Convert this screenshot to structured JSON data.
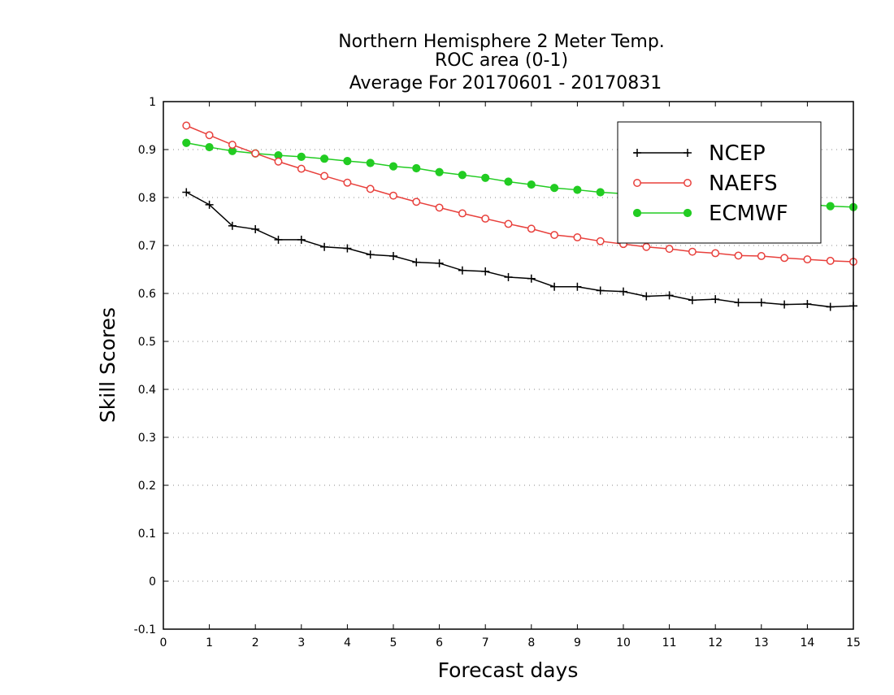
{
  "chart_data": {
    "type": "line",
    "title": [
      "Northern Hemisphere 2 Meter Temp.",
      "ROC area (0-1)",
      "Average For 20170601 - 20170831"
    ],
    "xlabel": "Forecast days",
    "ylabel": "Skill Scores",
    "xlim": [
      0,
      15
    ],
    "ylim": [
      -0.1,
      1
    ],
    "xticks": [
      "0",
      "1",
      "2",
      "3",
      "4",
      "5",
      "6",
      "7",
      "8",
      "9",
      "10",
      "11",
      "12",
      "13",
      "14",
      "15"
    ],
    "yticks": [
      "-0.1",
      "0",
      "0.1",
      "0.2",
      "0.3",
      "0.4",
      "0.5",
      "0.6",
      "0.7",
      "0.8",
      "0.9",
      "1"
    ],
    "grid": true,
    "legend_position": "top-right",
    "x": [
      0.5,
      1,
      1.5,
      2,
      2.5,
      3,
      3.5,
      4,
      4.5,
      5,
      5.5,
      6,
      6.5,
      7,
      7.5,
      8,
      8.5,
      9,
      9.5,
      10,
      10.5,
      11,
      11.5,
      12,
      12.5,
      13,
      13.5,
      14,
      14.5,
      15
    ],
    "series": [
      {
        "name": "NCEP",
        "color": "#000000",
        "marker": "plus",
        "values": [
          0.811,
          0.785,
          0.741,
          0.734,
          0.712,
          0.712,
          0.697,
          0.694,
          0.681,
          0.678,
          0.665,
          0.663,
          0.648,
          0.646,
          0.634,
          0.631,
          0.614,
          0.614,
          0.606,
          0.604,
          0.594,
          0.596,
          0.586,
          0.588,
          0.581,
          0.581,
          0.577,
          0.578,
          0.572,
          0.574
        ]
      },
      {
        "name": "NAEFS",
        "color": "#e8403c",
        "marker": "open-circle",
        "values": [
          0.95,
          0.93,
          0.91,
          0.892,
          0.875,
          0.86,
          0.845,
          0.831,
          0.818,
          0.804,
          0.791,
          0.779,
          0.767,
          0.756,
          0.745,
          0.735,
          0.722,
          0.717,
          0.709,
          0.703,
          0.697,
          0.693,
          0.687,
          0.684,
          0.679,
          0.678,
          0.674,
          0.671,
          0.668,
          0.666
        ]
      },
      {
        "name": "ECMWF",
        "color": "#22cc22",
        "marker": "filled-circle",
        "values": [
          0.914,
          0.905,
          0.897,
          0.892,
          0.888,
          0.885,
          0.881,
          0.876,
          0.872,
          0.865,
          0.861,
          0.853,
          0.847,
          0.841,
          0.833,
          0.827,
          0.82,
          0.816,
          0.811,
          0.808,
          0.805,
          0.802,
          0.799,
          0.797,
          0.794,
          0.792,
          0.789,
          0.786,
          0.782,
          0.78
        ]
      }
    ]
  }
}
